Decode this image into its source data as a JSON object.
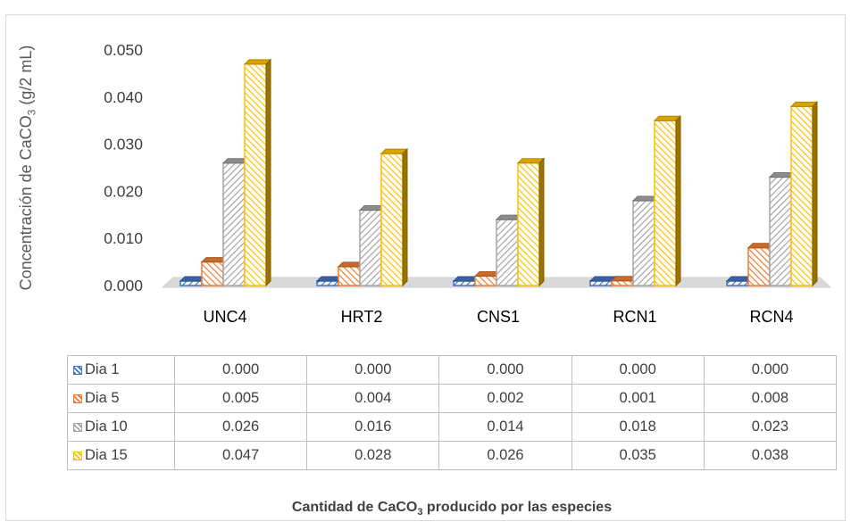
{
  "chart_data": {
    "type": "bar",
    "categories": [
      "UNC4",
      "HRT2",
      "CNS1",
      "RCN1",
      "RCN4"
    ],
    "series": [
      {
        "name": "Dia 1",
        "values": [
          0.0,
          0.0,
          0.0,
          0.0,
          0.0
        ],
        "labels": [
          "0.000",
          "0.000",
          "0.000",
          "0.000",
          "0.000"
        ],
        "color": "#4472c4"
      },
      {
        "name": "Dia 5",
        "values": [
          0.005,
          0.004,
          0.002,
          0.001,
          0.008
        ],
        "labels": [
          "0.005",
          "0.004",
          "0.002",
          "0.001",
          "0.008"
        ],
        "color": "#ed7d31"
      },
      {
        "name": "Dia 10",
        "values": [
          0.026,
          0.016,
          0.014,
          0.018,
          0.023
        ],
        "labels": [
          "0.026",
          "0.016",
          "0.014",
          "0.018",
          "0.023"
        ],
        "color": "#a5a5a5"
      },
      {
        "name": "Dia 15",
        "values": [
          0.047,
          0.028,
          0.026,
          0.035,
          0.038
        ],
        "labels": [
          "0.047",
          "0.028",
          "0.026",
          "0.035",
          "0.038"
        ],
        "color": "#ffc000"
      }
    ],
    "yticks": [
      "0.000",
      "0.010",
      "0.020",
      "0.030",
      "0.040",
      "0.050"
    ],
    "ylim": [
      0,
      0.05
    ],
    "ylabel_main": "Concentración de CaCO",
    "ylabel_sub": "3",
    "ylabel_tail": " (g/2 mL)",
    "xlabel_main": "Cantidad de CaCO",
    "xlabel_sub": "3",
    "xlabel_tail": " producido por las especies",
    "style": "3d-clustered-column",
    "pattern": "diagonal-hatch",
    "legend": "data-table"
  }
}
